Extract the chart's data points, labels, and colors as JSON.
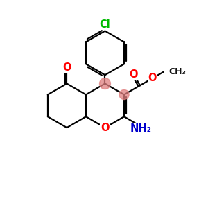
{
  "background_color": "#ffffff",
  "atom_color_O": "#ff0000",
  "atom_color_N": "#0000cc",
  "atom_color_Cl": "#00bb00",
  "atom_color_highlight": "#e08080",
  "bond_color": "#000000",
  "bond_width": 1.6,
  "figsize": [
    3.0,
    3.0
  ],
  "dpi": 100,
  "xlim": [
    0,
    10
  ],
  "ylim": [
    0,
    10
  ]
}
